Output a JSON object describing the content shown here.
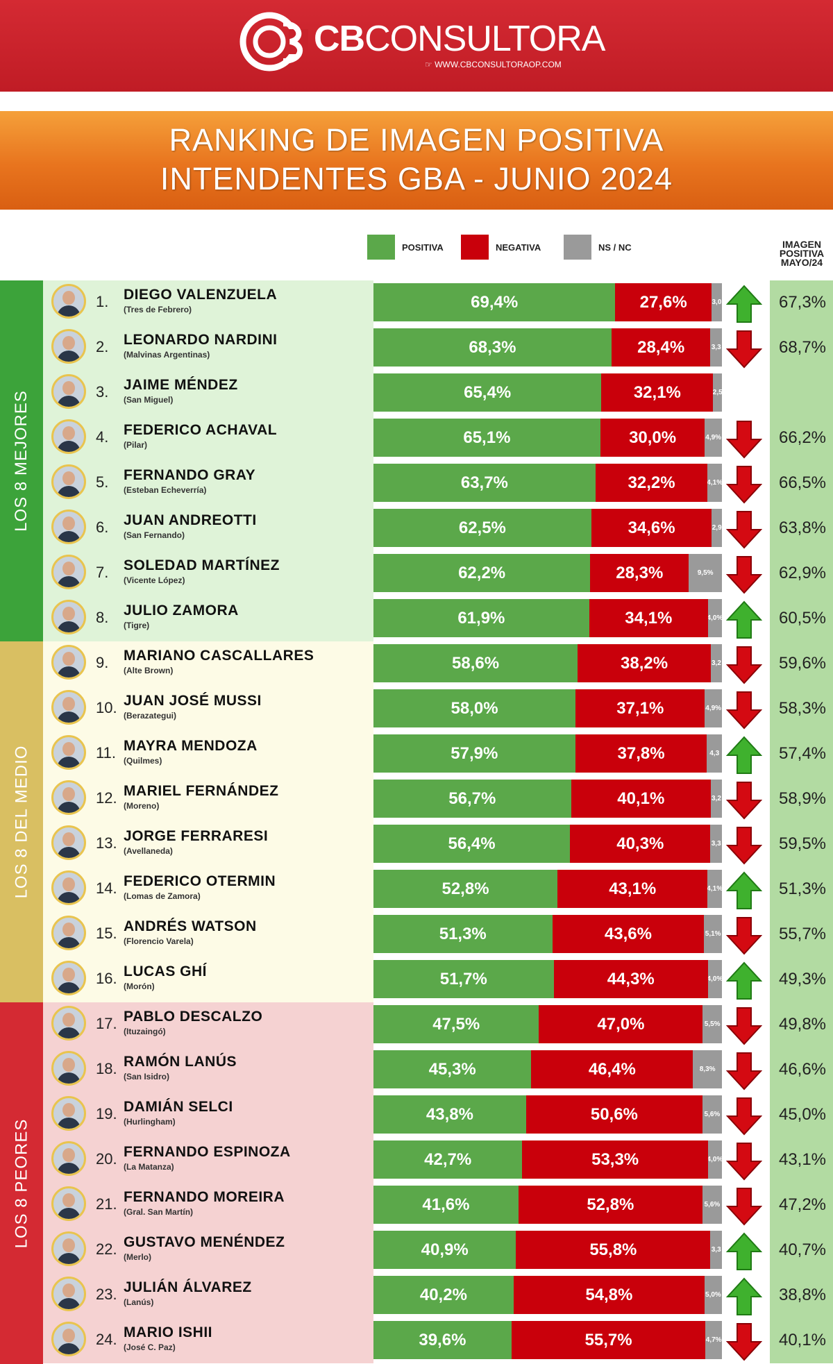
{
  "brand": {
    "name_bold": "CB",
    "name_rest": "CONSULTORA",
    "website": "WWW.CBCONSULTORAOP.COM"
  },
  "title": {
    "line1": "RANKING DE IMAGEN POSITIVA",
    "line2": "INTENDENTES GBA - JUNIO 2024"
  },
  "legend": {
    "positive": "POSITIVA",
    "negative": "NEGATIVA",
    "nsnc": "NS / NC"
  },
  "prev_header": {
    "line1": "IMAGEN",
    "line2": "POSITIVA",
    "line3": "MAYO/24"
  },
  "colors": {
    "positive": "#5ba84a",
    "negative": "#c9000b",
    "nsnc": "#9a9a9a",
    "best": "#3ca33a",
    "middle": "#d9bf62",
    "worst": "#d42a33"
  },
  "groups": [
    {
      "label": "LOS 8 MEJORES"
    },
    {
      "label": "LOS 8 DEL MEDIO"
    },
    {
      "label": "LOS 8 PEORES"
    }
  ],
  "chart_data": {
    "type": "bar",
    "stacked": true,
    "orientation": "horizontal",
    "title": "RANKING DE IMAGEN POSITIVA INTENDENTES GBA - JUNIO 2024",
    "series_names": [
      "POSITIVA",
      "NEGATIVA",
      "NS / NC"
    ],
    "rows": [
      {
        "rank": "1.",
        "name": "DIEGO VALENZUELA",
        "district": "(Tres de Febrero)",
        "pos": 69.4,
        "neg": 27.6,
        "nsnc": 3.0,
        "pos_label": "69,4%",
        "neg_label": "27,6%",
        "nsnc_label": "3,0",
        "trend": "up",
        "prev": "67,3%"
      },
      {
        "rank": "2.",
        "name": "LEONARDO NARDINI",
        "district": "(Malvinas Argentinas)",
        "pos": 68.3,
        "neg": 28.4,
        "nsnc": 3.3,
        "pos_label": "68,3%",
        "neg_label": "28,4%",
        "nsnc_label": "3,3",
        "trend": "down",
        "prev": "68,7%"
      },
      {
        "rank": "3.",
        "name": "JAIME MÉNDEZ",
        "district": "(San Miguel)",
        "pos": 65.4,
        "neg": 32.1,
        "nsnc": 2.5,
        "pos_label": "65,4%",
        "neg_label": "32,1%",
        "nsnc_label": "2,5",
        "trend": "none",
        "prev": ""
      },
      {
        "rank": "4.",
        "name": "FEDERICO ACHAVAL",
        "district": "(Pilar)",
        "pos": 65.1,
        "neg": 30.0,
        "nsnc": 4.9,
        "pos_label": "65,1%",
        "neg_label": "30,0%",
        "nsnc_label": "4,9%",
        "trend": "down",
        "prev": "66,2%"
      },
      {
        "rank": "5.",
        "name": "FERNANDO GRAY",
        "district": "(Esteban Echeverría)",
        "pos": 63.7,
        "neg": 32.2,
        "nsnc": 4.1,
        "pos_label": "63,7%",
        "neg_label": "32,2%",
        "nsnc_label": "4,1%",
        "trend": "down",
        "prev": "66,5%"
      },
      {
        "rank": "6.",
        "name": "JUAN ANDREOTTI",
        "district": "(San Fernando)",
        "pos": 62.5,
        "neg": 34.6,
        "nsnc": 2.9,
        "pos_label": "62,5%",
        "neg_label": "34,6%",
        "nsnc_label": "2,9",
        "trend": "down",
        "prev": "63,8%"
      },
      {
        "rank": "7.",
        "name": "SOLEDAD MARTÍNEZ",
        "district": "(Vicente López)",
        "pos": 62.2,
        "neg": 28.3,
        "nsnc": 9.5,
        "pos_label": "62,2%",
        "neg_label": "28,3%",
        "nsnc_label": "9,5%",
        "trend": "down",
        "prev": "62,9%"
      },
      {
        "rank": "8.",
        "name": "JULIO ZAMORA",
        "district": "(Tigre)",
        "pos": 61.9,
        "neg": 34.1,
        "nsnc": 4.0,
        "pos_label": "61,9%",
        "neg_label": "34,1%",
        "nsnc_label": "4,0%",
        "trend": "up",
        "prev": "60,5%"
      },
      {
        "rank": "9.",
        "name": "MARIANO CASCALLARES",
        "district": "(Alte Brown)",
        "pos": 58.6,
        "neg": 38.2,
        "nsnc": 3.2,
        "pos_label": "58,6%",
        "neg_label": "38,2%",
        "nsnc_label": "3,2",
        "trend": "down",
        "prev": "59,6%"
      },
      {
        "rank": "10.",
        "name": "JUAN JOSÉ MUSSI",
        "district": "(Berazategui)",
        "pos": 58.0,
        "neg": 37.1,
        "nsnc": 4.9,
        "pos_label": "58,0%",
        "neg_label": "37,1%",
        "nsnc_label": "4,9%",
        "trend": "down",
        "prev": "58,3%"
      },
      {
        "rank": "11.",
        "name": "MAYRA MENDOZA",
        "district": "(Quilmes)",
        "pos": 57.9,
        "neg": 37.8,
        "nsnc": 4.3,
        "pos_label": "57,9%",
        "neg_label": "37,8%",
        "nsnc_label": "4,3",
        "trend": "up",
        "prev": "57,4%"
      },
      {
        "rank": "12.",
        "name": "MARIEL FERNÁNDEZ",
        "district": "(Moreno)",
        "pos": 56.7,
        "neg": 40.1,
        "nsnc": 3.2,
        "pos_label": "56,7%",
        "neg_label": "40,1%",
        "nsnc_label": "3,2",
        "trend": "down",
        "prev": "58,9%"
      },
      {
        "rank": "13.",
        "name": "JORGE FERRARESI",
        "district": "(Avellaneda)",
        "pos": 56.4,
        "neg": 40.3,
        "nsnc": 3.3,
        "pos_label": "56,4%",
        "neg_label": "40,3%",
        "nsnc_label": "3,3",
        "trend": "down",
        "prev": "59,5%"
      },
      {
        "rank": "14.",
        "name": "FEDERICO OTERMIN",
        "district": "(Lomas de Zamora)",
        "pos": 52.8,
        "neg": 43.1,
        "nsnc": 4.1,
        "pos_label": "52,8%",
        "neg_label": "43,1%",
        "nsnc_label": "4,1%",
        "trend": "up",
        "prev": "51,3%"
      },
      {
        "rank": "15.",
        "name": "ANDRÉS WATSON",
        "district": "(Florencio Varela)",
        "pos": 51.3,
        "neg": 43.6,
        "nsnc": 5.1,
        "pos_label": "51,3%",
        "neg_label": "43,6%",
        "nsnc_label": "5,1%",
        "trend": "down",
        "prev": "55,7%"
      },
      {
        "rank": "16.",
        "name": "LUCAS GHÍ",
        "district": "(Morón)",
        "pos": 51.7,
        "neg": 44.3,
        "nsnc": 4.0,
        "pos_label": "51,7%",
        "neg_label": "44,3%",
        "nsnc_label": "4,0%",
        "trend": "up",
        "prev": "49,3%"
      },
      {
        "rank": "17.",
        "name": "PABLO DESCALZO",
        "district": "(Ituzaingó)",
        "pos": 47.5,
        "neg": 47.0,
        "nsnc": 5.5,
        "pos_label": "47,5%",
        "neg_label": "47,0%",
        "nsnc_label": "5,5%",
        "trend": "down",
        "prev": "49,8%"
      },
      {
        "rank": "18.",
        "name": "RAMÓN LANÚS",
        "district": "(San Isidro)",
        "pos": 45.3,
        "neg": 46.4,
        "nsnc": 8.3,
        "pos_label": "45,3%",
        "neg_label": "46,4%",
        "nsnc_label": "8,3%",
        "trend": "down",
        "prev": "46,6%"
      },
      {
        "rank": "19.",
        "name": "DAMIÁN SELCI",
        "district": "(Hurlingham)",
        "pos": 43.8,
        "neg": 50.6,
        "nsnc": 5.6,
        "pos_label": "43,8%",
        "neg_label": "50,6%",
        "nsnc_label": "5,6%",
        "trend": "down",
        "prev": "45,0%"
      },
      {
        "rank": "20.",
        "name": "FERNANDO ESPINOZA",
        "district": "(La Matanza)",
        "pos": 42.7,
        "neg": 53.3,
        "nsnc": 4.0,
        "pos_label": "42,7%",
        "neg_label": "53,3%",
        "nsnc_label": "4,0%",
        "trend": "down",
        "prev": "43,1%"
      },
      {
        "rank": "21.",
        "name": "FERNANDO MOREIRA",
        "district": "(Gral. San Martín)",
        "pos": 41.6,
        "neg": 52.8,
        "nsnc": 5.6,
        "pos_label": "41,6%",
        "neg_label": "52,8%",
        "nsnc_label": "5,6%",
        "trend": "down",
        "prev": "47,2%"
      },
      {
        "rank": "22.",
        "name": "GUSTAVO MENÉNDEZ",
        "district": "(Merlo)",
        "pos": 40.9,
        "neg": 55.8,
        "nsnc": 3.3,
        "pos_label": "40,9%",
        "neg_label": "55,8%",
        "nsnc_label": "3,3",
        "trend": "up",
        "prev": "40,7%"
      },
      {
        "rank": "23.",
        "name": "JULIÁN ÁLVAREZ",
        "district": "(Lanús)",
        "pos": 40.2,
        "neg": 54.8,
        "nsnc": 5.0,
        "pos_label": "40,2%",
        "neg_label": "54,8%",
        "nsnc_label": "5,0%",
        "trend": "up",
        "prev": "38,8%"
      },
      {
        "rank": "24.",
        "name": "MARIO ISHII",
        "district": "(José C. Paz)",
        "pos": 39.6,
        "neg": 55.7,
        "nsnc": 4.7,
        "pos_label": "39,6%",
        "neg_label": "55,7%",
        "nsnc_label": "4,7%",
        "trend": "down",
        "prev": "40,1%"
      }
    ]
  }
}
